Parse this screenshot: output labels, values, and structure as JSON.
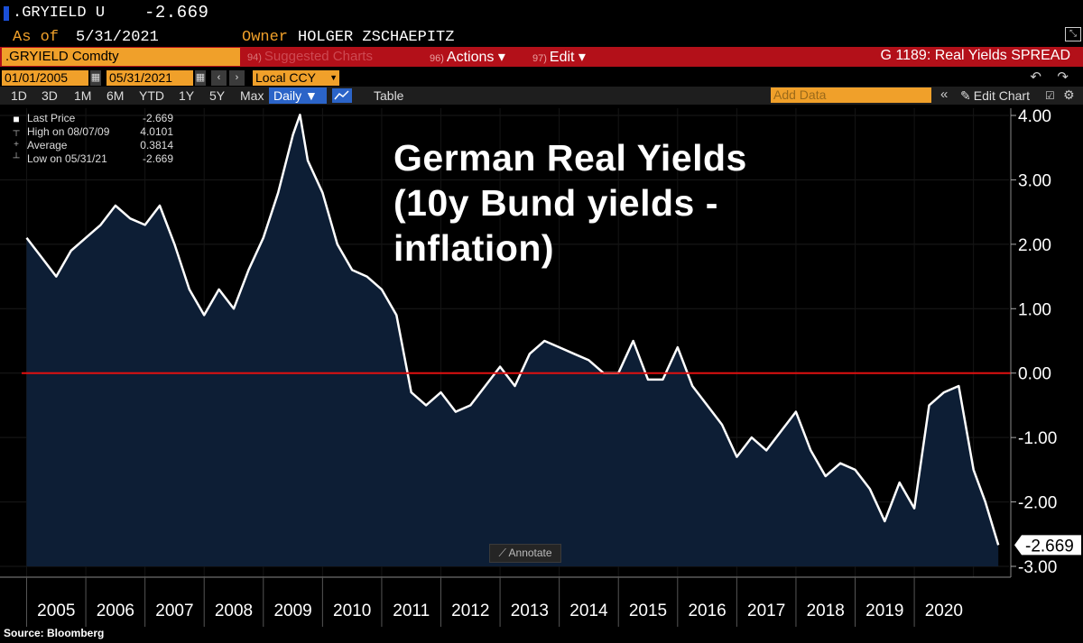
{
  "header": {
    "ticker": ".GRYIELD U",
    "price": "-2.669",
    "as_of_label": "As of",
    "as_of_value": "5/31/2021",
    "owner_label": "Owner",
    "owner_value": "HOLGER ZSCHAEPITZ"
  },
  "toolbar": {
    "security": ".GRYIELD Comdty",
    "suggested_num": "94)",
    "suggested_label": "Suggested Charts",
    "actions_num": "96)",
    "actions_label": "Actions ▾",
    "edit_num": "97)",
    "edit_label": "Edit ▾",
    "chart_id": "G 1189: Real Yields SPREAD",
    "start_date": "01/01/2005",
    "end_date": "05/31/2021",
    "currency": "Local CCY",
    "periods": [
      "1D",
      "3D",
      "1M",
      "6M",
      "YTD",
      "1Y",
      "5Y",
      "Max"
    ],
    "frequency": "Daily ▼",
    "table_label": "Table",
    "add_data_placeholder": "Add Data",
    "edit_chart_label": "Edit Chart"
  },
  "legend": {
    "items": [
      {
        "label": "Last Price",
        "value": "-2.669"
      },
      {
        "label": "High on 08/07/09",
        "value": "4.0101"
      },
      {
        "label": "Average",
        "value": "0.3814"
      },
      {
        "label": "Low on 05/31/21",
        "value": "-2.669"
      }
    ]
  },
  "title_lines": [
    "German Real Yields",
    "(10y Bund yields -",
    "inflation)"
  ],
  "annotate_label": "Annotate",
  "source": "Source: Bloomberg",
  "last_value_label": "-2.669",
  "colors": {
    "line": "#ffffff",
    "fill": "#0d1e35",
    "zero_line": "#e01010",
    "accent": "#f0a02a",
    "background": "#000000"
  },
  "chart_data": {
    "type": "area",
    "x": [
      2005.0,
      2005.25,
      2005.5,
      2005.75,
      2006.0,
      2006.25,
      2006.5,
      2006.75,
      2007.0,
      2007.25,
      2007.5,
      2007.75,
      2008.0,
      2008.25,
      2008.5,
      2008.75,
      2009.0,
      2009.25,
      2009.5,
      2009.62,
      2009.75,
      2010.0,
      2010.25,
      2010.5,
      2010.75,
      2011.0,
      2011.25,
      2011.5,
      2011.75,
      2012.0,
      2012.25,
      2012.5,
      2012.75,
      2013.0,
      2013.25,
      2013.5,
      2013.75,
      2014.0,
      2014.25,
      2014.5,
      2014.75,
      2015.0,
      2015.25,
      2015.5,
      2015.75,
      2016.0,
      2016.25,
      2016.5,
      2016.75,
      2017.0,
      2017.25,
      2017.5,
      2017.75,
      2018.0,
      2018.25,
      2018.5,
      2018.75,
      2019.0,
      2019.25,
      2019.5,
      2019.75,
      2020.0,
      2020.25,
      2020.5,
      2020.75,
      2021.0,
      2021.2,
      2021.42
    ],
    "values": [
      2.1,
      1.8,
      1.5,
      1.9,
      2.1,
      2.3,
      2.6,
      2.4,
      2.3,
      2.6,
      2.0,
      1.3,
      0.9,
      1.3,
      1.0,
      1.6,
      2.1,
      2.8,
      3.7,
      4.01,
      3.3,
      2.8,
      2.0,
      1.6,
      1.5,
      1.3,
      0.9,
      -0.3,
      -0.5,
      -0.3,
      -0.6,
      -0.5,
      -0.2,
      0.1,
      -0.2,
      0.3,
      0.5,
      0.4,
      0.3,
      0.2,
      0.0,
      0.0,
      0.5,
      -0.1,
      -0.1,
      0.4,
      -0.2,
      -0.5,
      -0.8,
      -1.3,
      -1.0,
      -1.2,
      -0.9,
      -0.6,
      -1.2,
      -1.6,
      -1.4,
      -1.5,
      -1.8,
      -2.3,
      -1.7,
      -2.1,
      -0.5,
      -0.3,
      -0.2,
      -1.5,
      -2.0,
      -2.669
    ],
    "categories": [
      "2005",
      "2006",
      "2007",
      "2008",
      "2009",
      "2010",
      "2011",
      "2012",
      "2013",
      "2014",
      "2015",
      "2016",
      "2017",
      "2018",
      "2019",
      "2020"
    ],
    "ylim": [
      -3.0,
      4.0
    ],
    "y_ticks": [
      "4.00",
      "3.00",
      "2.00",
      "1.00",
      "0.00",
      "-1.00",
      "-2.00",
      "-3.00"
    ],
    "reference_line": 0.0,
    "grid": true,
    "title": "German Real Yields (10y Bund yields - inflation)"
  }
}
